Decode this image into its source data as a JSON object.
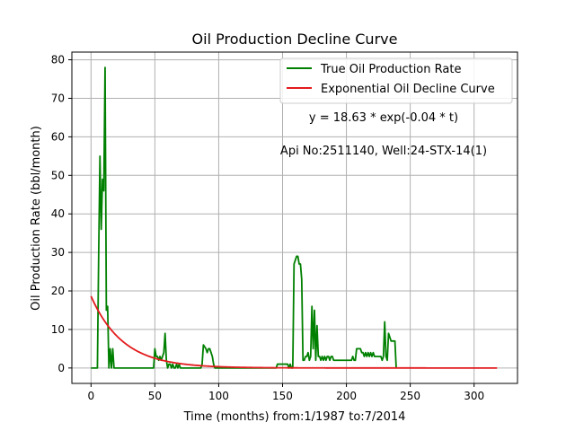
{
  "chart_data": {
    "type": "line",
    "title": "Oil Production Decline Curve",
    "xlabel": "Time (months) from:1/1987 to:7/2014",
    "ylabel": "Oil Production Rate (bbl/month)",
    "xlim": [
      -15,
      334
    ],
    "ylim": [
      -4,
      82
    ],
    "xticks": [
      0,
      50,
      100,
      150,
      200,
      250,
      300
    ],
    "yticks": [
      0,
      10,
      20,
      30,
      40,
      50,
      60,
      70,
      80
    ],
    "grid": true,
    "legend_position": "top-right",
    "annotations": [
      {
        "text": "y = 18.63 * exp(-0.04 * t)",
        "x": 228,
        "y": 64
      },
      {
        "text": "Api No:2511140, Well:24-STX-14(1)",
        "x": 228,
        "y": 56
      }
    ],
    "series": [
      {
        "name": "True Oil Production Rate",
        "color": "#008000",
        "points": [
          [
            0,
            0
          ],
          [
            4,
            0
          ],
          [
            5,
            0
          ],
          [
            6,
            30
          ],
          [
            7,
            55
          ],
          [
            8,
            36
          ],
          [
            9,
            49
          ],
          [
            10,
            46
          ],
          [
            11,
            78
          ],
          [
            12,
            15
          ],
          [
            13,
            16
          ],
          [
            14,
            0
          ],
          [
            15,
            5
          ],
          [
            16,
            0
          ],
          [
            17,
            5
          ],
          [
            18,
            0
          ],
          [
            20,
            0
          ],
          [
            30,
            0
          ],
          [
            40,
            0
          ],
          [
            49,
            0
          ],
          [
            50,
            5
          ],
          [
            51,
            3
          ],
          [
            52,
            3
          ],
          [
            53,
            2
          ],
          [
            54,
            3
          ],
          [
            55,
            2
          ],
          [
            56,
            3
          ],
          [
            57,
            4
          ],
          [
            58,
            9
          ],
          [
            59,
            2
          ],
          [
            60,
            0
          ],
          [
            61,
            1
          ],
          [
            62,
            1
          ],
          [
            63,
            0
          ],
          [
            64,
            1
          ],
          [
            65,
            0
          ],
          [
            66,
            0
          ],
          [
            67,
            1
          ],
          [
            68,
            0
          ],
          [
            69,
            1
          ],
          [
            70,
            0
          ],
          [
            75,
            0
          ],
          [
            80,
            0
          ],
          [
            86,
            0
          ],
          [
            87,
            1
          ],
          [
            88,
            6
          ],
          [
            89,
            5.5
          ],
          [
            90,
            5
          ],
          [
            91,
            4
          ],
          [
            92,
            5
          ],
          [
            93,
            5
          ],
          [
            94,
            4
          ],
          [
            95,
            3
          ],
          [
            96,
            1
          ],
          [
            97,
            0
          ],
          [
            100,
            0
          ],
          [
            110,
            0
          ],
          [
            120,
            0
          ],
          [
            130,
            0
          ],
          [
            140,
            0
          ],
          [
            145,
            0
          ],
          [
            146,
            1
          ],
          [
            148,
            1
          ],
          [
            150,
            1
          ],
          [
            152,
            1
          ],
          [
            154,
            1
          ],
          [
            155,
            0
          ],
          [
            156,
            1
          ],
          [
            157,
            0
          ],
          [
            158,
            0
          ],
          [
            159,
            27
          ],
          [
            160,
            28
          ],
          [
            161,
            29
          ],
          [
            162,
            29
          ],
          [
            163,
            27
          ],
          [
            164,
            27
          ],
          [
            165,
            23
          ],
          [
            166,
            2
          ],
          [
            167,
            2
          ],
          [
            168,
            3
          ],
          [
            169,
            3
          ],
          [
            170,
            4
          ],
          [
            171,
            2
          ],
          [
            172,
            3
          ],
          [
            173,
            16
          ],
          [
            174,
            5
          ],
          [
            175,
            15
          ],
          [
            176,
            2
          ],
          [
            177,
            11
          ],
          [
            178,
            3
          ],
          [
            179,
            3
          ],
          [
            180,
            2
          ],
          [
            181,
            3
          ],
          [
            182,
            2
          ],
          [
            183,
            3
          ],
          [
            184,
            2
          ],
          [
            185,
            3
          ],
          [
            186,
            3
          ],
          [
            187,
            2
          ],
          [
            188,
            3
          ],
          [
            189,
            3
          ],
          [
            190,
            2
          ],
          [
            192,
            2
          ],
          [
            194,
            2
          ],
          [
            196,
            2
          ],
          [
            198,
            2
          ],
          [
            200,
            2
          ],
          [
            202,
            2
          ],
          [
            204,
            2
          ],
          [
            205,
            3
          ],
          [
            206,
            2
          ],
          [
            207,
            2
          ],
          [
            208,
            5
          ],
          [
            210,
            5
          ],
          [
            211,
            5
          ],
          [
            212,
            4
          ],
          [
            213,
            4
          ],
          [
            214,
            3
          ],
          [
            215,
            4
          ],
          [
            216,
            3
          ],
          [
            217,
            4
          ],
          [
            218,
            3
          ],
          [
            219,
            4
          ],
          [
            220,
            3
          ],
          [
            221,
            4
          ],
          [
            222,
            3
          ],
          [
            223,
            3
          ],
          [
            224,
            3
          ],
          [
            225,
            3
          ],
          [
            226,
            3
          ],
          [
            227,
            3
          ],
          [
            228,
            2
          ],
          [
            229,
            3
          ],
          [
            230,
            12
          ],
          [
            231,
            3
          ],
          [
            232,
            2
          ],
          [
            233,
            9
          ],
          [
            234,
            8
          ],
          [
            235,
            7
          ],
          [
            236,
            7
          ],
          [
            237,
            7
          ],
          [
            238,
            7
          ],
          [
            239,
            0
          ]
        ]
      },
      {
        "name": "Exponential Oil Decline Curve",
        "color": "#e31a1c",
        "equation": {
          "a": 18.63,
          "b": -0.04,
          "t_start": 0,
          "t_end": 318
        }
      }
    ]
  }
}
